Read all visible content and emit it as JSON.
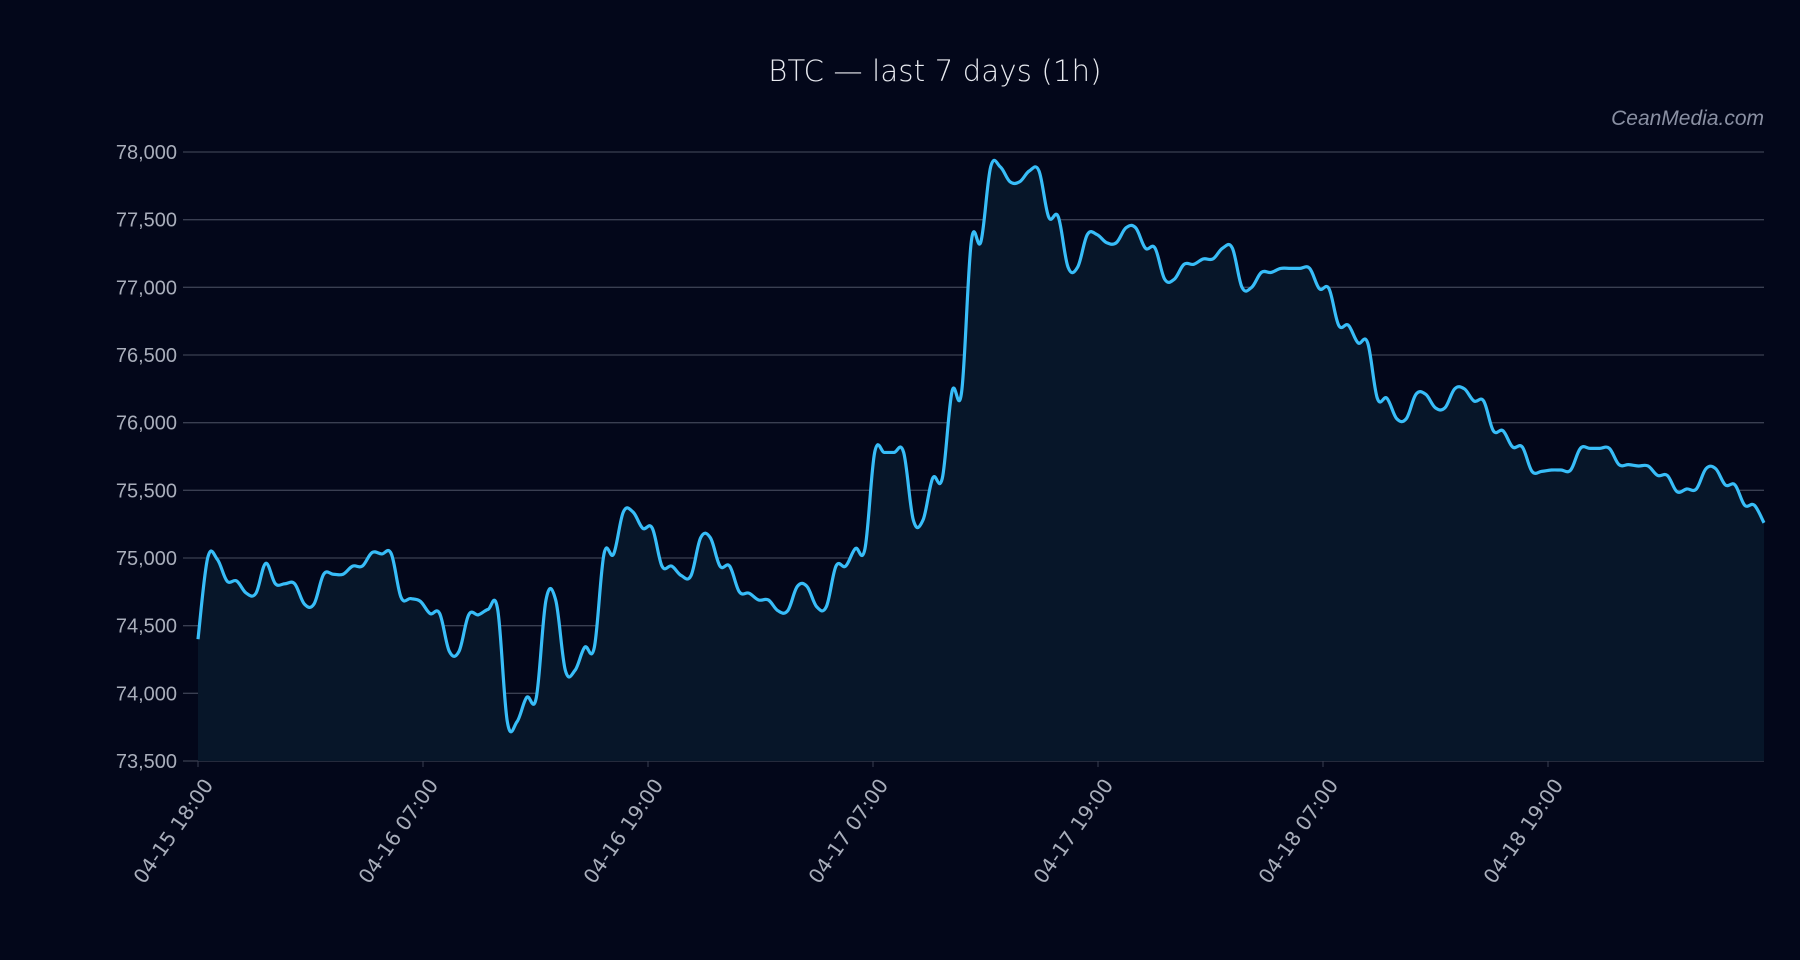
{
  "title": "BTC — last 7 days (1h)",
  "watermark": "CeanMedia.com",
  "colors": {
    "background": "#03071a",
    "line": "#38bdf8",
    "fill": "#071629",
    "grid": "#3a3f52",
    "text": "#a9aebb",
    "title": "#e8eaf0"
  },
  "chart_data": {
    "type": "area",
    "title": "BTC — last 7 days (1h)",
    "xlabel": "",
    "ylabel": "",
    "ylim": [
      73500,
      78000
    ],
    "grid": true,
    "legend": "none",
    "y_ticks": [
      "73,500",
      "74,000",
      "74,500",
      "75,000",
      "75,500",
      "76,000",
      "76,500",
      "77,000",
      "77,500",
      "78,000"
    ],
    "x_tick_labels": [
      "04-15 18:00",
      "04-16 07:00",
      "04-16 19:00",
      "04-17 07:00",
      "04-17 19:00",
      "04-18 07:00",
      "04-18 19:00"
    ],
    "x_tick_index": [
      0,
      12.5,
      25,
      37.5,
      50,
      62.5,
      75
    ],
    "series": [
      {
        "name": "BTC",
        "values": [
          74400,
          75000,
          74990,
          74830,
          74830,
          74740,
          74740,
          74960,
          74810,
          74810,
          74810,
          74660,
          74660,
          74880,
          74880,
          74880,
          74940,
          74940,
          75040,
          75030,
          75030,
          74710,
          74700,
          74680,
          74590,
          74590,
          74310,
          74310,
          74580,
          74580,
          74620,
          74620,
          73790,
          73790,
          73970,
          73970,
          74690,
          74690,
          74170,
          74170,
          74340,
          74340,
          75030,
          75030,
          75340,
          75340,
          75220,
          75220,
          74940,
          74940,
          74870,
          74870,
          75150,
          75150,
          74940,
          74940,
          74750,
          74740,
          74690,
          74690,
          74610,
          74610,
          74790,
          74790,
          74640,
          74640,
          74940,
          74940,
          75070,
          75070,
          75780,
          75780,
          75780,
          75780,
          75280,
          75280,
          75590,
          75590,
          76230,
          76230,
          77340,
          77340,
          77890,
          77890,
          77780,
          77780,
          77860,
          77860,
          77520,
          77520,
          77150,
          77150,
          77390,
          77390,
          77330,
          77330,
          77440,
          77440,
          77290,
          77290,
          77060,
          77060,
          77170,
          77170,
          77210,
          77210,
          77290,
          77290,
          77000,
          77000,
          77110,
          77110,
          77140,
          77140,
          77140,
          77140,
          76990,
          76990,
          76720,
          76720,
          76590,
          76590,
          76180,
          76180,
          76030,
          76030,
          76210,
          76210,
          76110,
          76110,
          76250,
          76250,
          76160,
          76160,
          75940,
          75940,
          75820,
          75820,
          75640,
          75640,
          75650,
          75650,
          75650,
          75810,
          75810,
          75810,
          75810,
          75690,
          75690,
          75680,
          75680,
          75610,
          75610,
          75490,
          75510,
          75510,
          75660,
          75660,
          75540,
          75540,
          75390,
          75390,
          75260
        ]
      }
    ]
  }
}
